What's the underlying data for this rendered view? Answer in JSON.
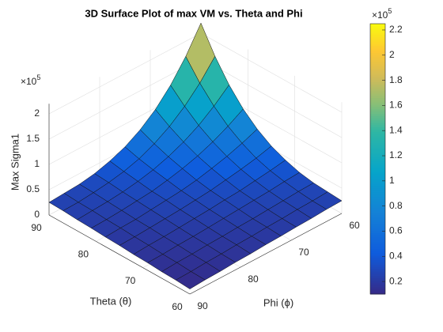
{
  "chart_data": {
    "type": "surface",
    "title": "3D Surface Plot of max VM vs. Theta and Phi",
    "xlabel": "Theta (θ)",
    "ylabel": "Phi (ϕ)",
    "zlabel": "Max Sigma1",
    "z_exponent": {
      "base": "×10",
      "power": "5"
    },
    "colorbar_exponent": {
      "base": "×10",
      "power": "5"
    },
    "colormap": "parula",
    "grid": true,
    "x": [
      60,
      63,
      66,
      69,
      72,
      75,
      78,
      81,
      84,
      87,
      90
    ],
    "y": [
      60,
      63,
      66,
      69,
      72,
      75,
      78,
      81,
      84,
      87,
      90
    ],
    "z": [
      [
        0.25,
        0.24,
        0.22,
        0.21,
        0.19,
        0.18,
        0.16,
        0.15,
        0.13,
        0.12,
        0.1
      ],
      [
        0.27,
        0.25,
        0.24,
        0.22,
        0.21,
        0.19,
        0.18,
        0.16,
        0.15,
        0.13,
        0.12
      ],
      [
        0.29,
        0.28,
        0.26,
        0.24,
        0.22,
        0.21,
        0.19,
        0.18,
        0.16,
        0.15,
        0.13
      ],
      [
        0.34,
        0.32,
        0.29,
        0.27,
        0.25,
        0.23,
        0.21,
        0.19,
        0.18,
        0.16,
        0.15
      ],
      [
        0.43,
        0.38,
        0.34,
        0.3,
        0.28,
        0.25,
        0.23,
        0.21,
        0.19,
        0.18,
        0.16
      ],
      [
        0.55,
        0.47,
        0.41,
        0.36,
        0.31,
        0.28,
        0.25,
        0.23,
        0.21,
        0.19,
        0.18
      ],
      [
        0.73,
        0.61,
        0.51,
        0.43,
        0.36,
        0.31,
        0.28,
        0.25,
        0.22,
        0.21,
        0.19
      ],
      [
        0.97,
        0.79,
        0.64,
        0.52,
        0.43,
        0.36,
        0.3,
        0.27,
        0.24,
        0.22,
        0.21
      ],
      [
        1.29,
        1.03,
        0.81,
        0.64,
        0.51,
        0.41,
        0.34,
        0.29,
        0.26,
        0.24,
        0.22
      ],
      [
        1.7,
        1.33,
        1.03,
        0.79,
        0.61,
        0.47,
        0.38,
        0.32,
        0.28,
        0.25,
        0.24
      ],
      [
        2.2,
        1.7,
        1.29,
        0.97,
        0.73,
        0.55,
        0.43,
        0.34,
        0.29,
        0.27,
        0.25
      ]
    ],
    "xlim": [
      60,
      90
    ],
    "xticks": [
      60,
      70,
      80,
      90
    ],
    "ylim": [
      60,
      90
    ],
    "yticks": [
      60,
      70,
      80,
      90
    ],
    "zlim": [
      0,
      2.2
    ],
    "zticks": [
      0,
      0.5,
      1,
      1.5,
      2
    ],
    "clim": [
      0.1,
      2.25
    ],
    "cticks": [
      0.2,
      0.4,
      0.6,
      0.8,
      1,
      1.2,
      1.4,
      1.6,
      1.8,
      2,
      2.2
    ]
  }
}
